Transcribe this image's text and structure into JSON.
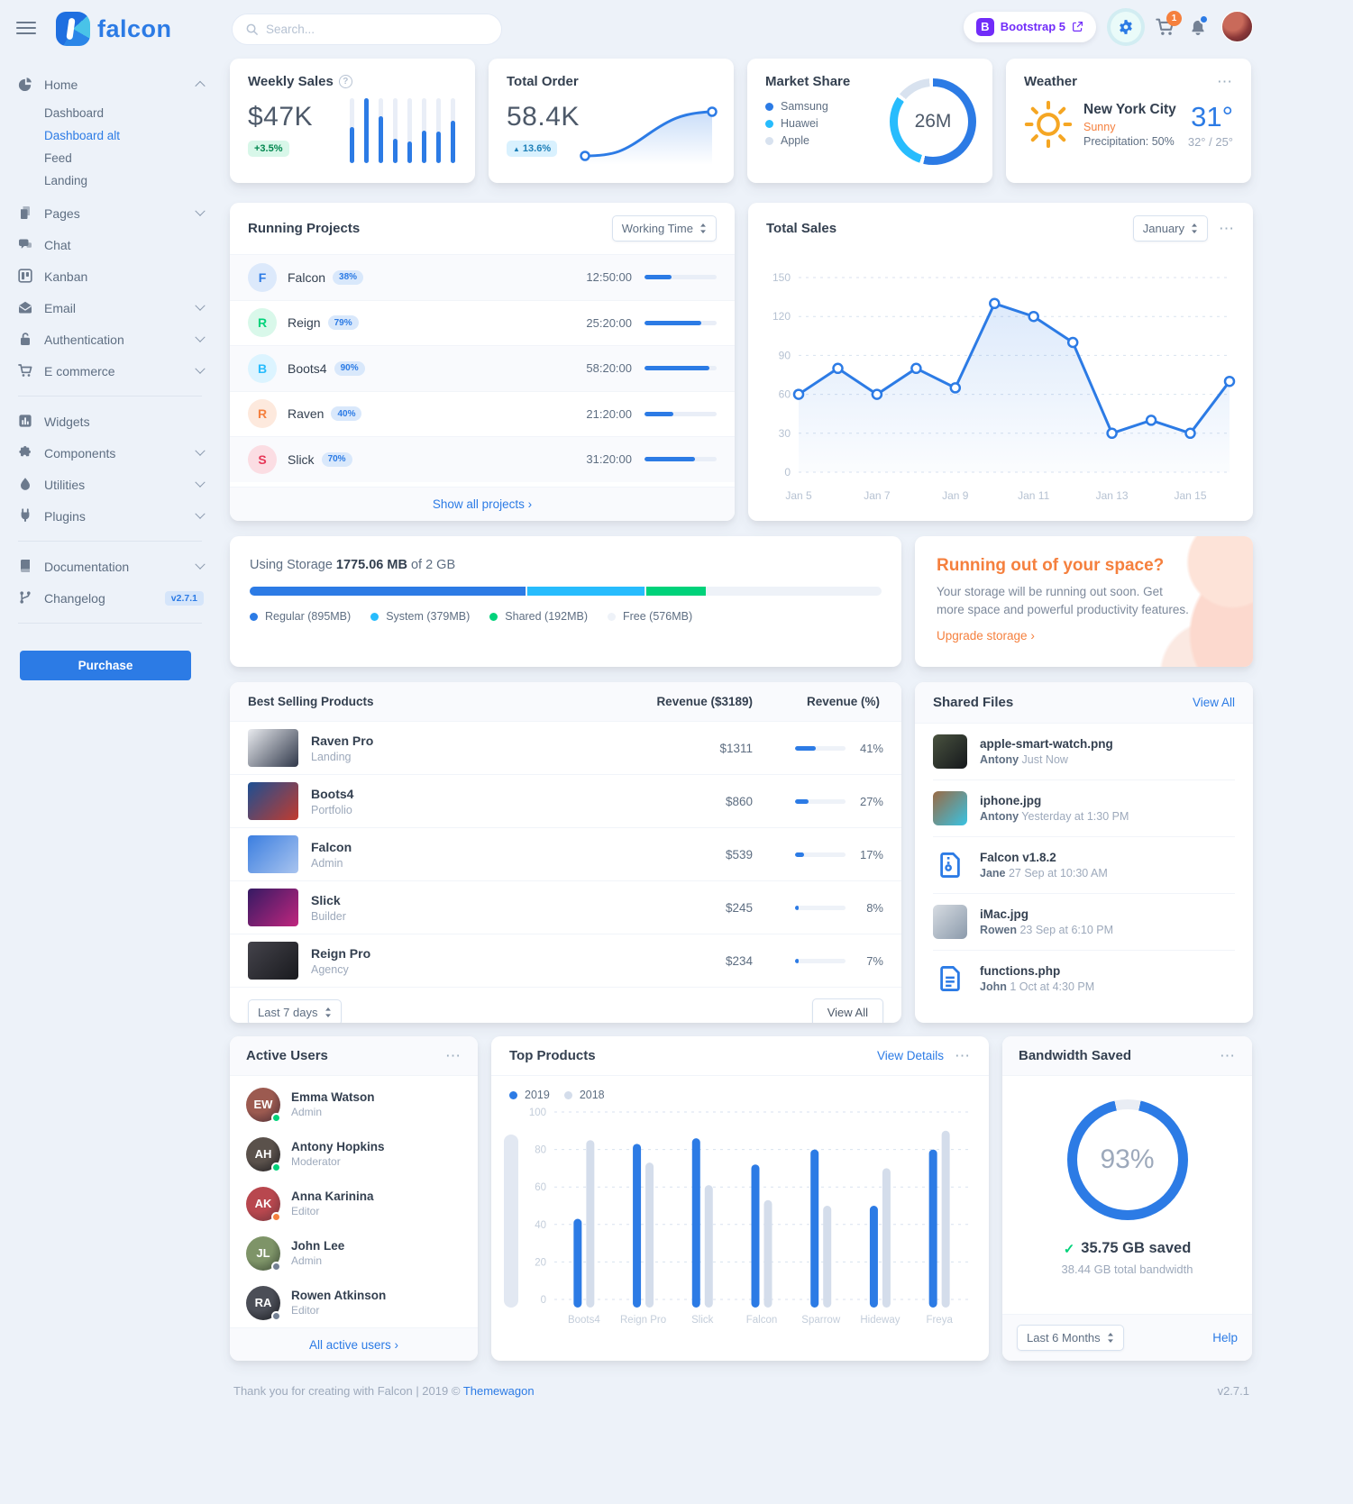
{
  "glyphs": {
    "menu": "⋯",
    "help": "?",
    "chevron_right": "›",
    "check": "✓",
    "caret_up": "▲",
    "bootstrap_letter": "B"
  },
  "colors": {
    "primary": "#2c7be5",
    "info": "#27bcfd",
    "success": "#00d27a",
    "warning": "#f5803e",
    "danger": "#e63757",
    "gray300": "#d8e2ef"
  },
  "navbar": {
    "logo": "falcon",
    "search_placeholder": "Search...",
    "bootstrap_badge": "Bootstrap 5",
    "cart_count": "1"
  },
  "sidebar": {
    "sections": [
      {
        "items": [
          {
            "label": "Home",
            "icon": "chart-pie",
            "chevron": "up",
            "children": [
              {
                "label": "Dashboard",
                "active": false
              },
              {
                "label": "Dashboard alt",
                "active": true
              },
              {
                "label": "Feed",
                "active": false
              },
              {
                "label": "Landing",
                "active": false
              }
            ]
          },
          {
            "label": "Pages",
            "icon": "pages",
            "chevron": "down"
          },
          {
            "label": "Chat",
            "icon": "chat"
          },
          {
            "label": "Kanban",
            "icon": "kanban"
          },
          {
            "label": "Email",
            "icon": "email",
            "chevron": "down"
          },
          {
            "label": "Authentication",
            "icon": "lock",
            "chevron": "down"
          },
          {
            "label": "E commerce",
            "icon": "cart",
            "chevron": "down"
          }
        ]
      },
      {
        "items": [
          {
            "label": "Widgets",
            "icon": "widgets"
          },
          {
            "label": "Components",
            "icon": "puzzle",
            "chevron": "down"
          },
          {
            "label": "Utilities",
            "icon": "drop",
            "chevron": "down"
          },
          {
            "label": "Plugins",
            "icon": "plug",
            "chevron": "down"
          }
        ]
      },
      {
        "items": [
          {
            "label": "Documentation",
            "icon": "book",
            "chevron": "down"
          },
          {
            "label": "Changelog",
            "icon": "branch",
            "badge": "v2.7.1"
          }
        ]
      }
    ],
    "purchase_label": "Purchase"
  },
  "weekly_sales": {
    "title": "Weekly Sales",
    "value": "$47K",
    "badge": "+3.5%",
    "bars": [
      55,
      100,
      72,
      38,
      33,
      50,
      48,
      65
    ]
  },
  "total_order": {
    "title": "Total Order",
    "value": "58.4K",
    "badge": "13.6%"
  },
  "market_share": {
    "title": "Market Share",
    "center": "26M",
    "legend": [
      {
        "label": "Samsung",
        "color": "#2c7be5",
        "pct": 55
      },
      {
        "label": "Huawei",
        "color": "#27bcfd",
        "pct": 31
      },
      {
        "label": "Apple",
        "color": "#d8e2ef",
        "pct": 14
      }
    ]
  },
  "weather": {
    "title": "Weather",
    "city": "New York City",
    "condition": "Sunny",
    "precipitation": "Precipitation: 50%",
    "temp": "31°",
    "range": "32° / 25°"
  },
  "running_projects": {
    "title": "Running Projects",
    "select_value": "Working Time",
    "footer_link": "Show all projects",
    "rows": [
      {
        "initial": "F",
        "name": "Falcon",
        "percent": "38%",
        "progress": 38,
        "time": "12:50:00",
        "color": "#2c7be5",
        "bg": "#dcE9fb"
      },
      {
        "initial": "R",
        "name": "Reign",
        "percent": "79%",
        "progress": 79,
        "time": "25:20:00",
        "color": "#00d27a",
        "bg": "#d9f8ea"
      },
      {
        "initial": "B",
        "name": "Boots4",
        "percent": "90%",
        "progress": 90,
        "time": "58:20:00",
        "color": "#27bcfd",
        "bg": "#dcf4ff"
      },
      {
        "initial": "R",
        "name": "Raven",
        "percent": "40%",
        "progress": 40,
        "time": "21:20:00",
        "color": "#f5803e",
        "bg": "#fde9dd"
      },
      {
        "initial": "S",
        "name": "Slick",
        "percent": "70%",
        "progress": 70,
        "time": "31:20:00",
        "color": "#e63757",
        "bg": "#fbdde3"
      }
    ]
  },
  "total_sales": {
    "title": "Total Sales",
    "select_value": "January",
    "y_ticks": [
      0,
      30,
      60,
      90,
      120,
      150
    ],
    "x_labels": [
      "Jan 5",
      "Jan 7",
      "Jan 9",
      "Jan 11",
      "Jan 13",
      "Jan 15"
    ],
    "values": [
      60,
      80,
      60,
      80,
      65,
      130,
      120,
      100,
      30,
      40,
      30,
      70
    ]
  },
  "storage": {
    "prefix": "Using Storage",
    "used": "1775.06 MB",
    "suffix": "of 2 GB",
    "total_mb": 2048,
    "segments": [
      {
        "label": "Regular (895MB)",
        "mb": 895,
        "color": "#2c7be5"
      },
      {
        "label": "System (379MB)",
        "mb": 379,
        "color": "#27bcfd"
      },
      {
        "label": "Shared (192MB)",
        "mb": 192,
        "color": "#00d27a"
      },
      {
        "label": "Free (576MB)",
        "mb": 576,
        "color": "#eef2f8"
      }
    ]
  },
  "space_warning": {
    "title": "Running out of your space?",
    "body": "Your storage will be running out soon. Get more space and powerful productivity features.",
    "link": "Upgrade storage"
  },
  "best_selling": {
    "title": "Best Selling Products",
    "col_revenue": "Revenue ($3189)",
    "col_percent": "Revenue (%)",
    "select_value": "Last 7 days",
    "view_all": "View All",
    "rows": [
      {
        "name": "Raven Pro",
        "category": "Landing",
        "revenue": "$1311",
        "pct": 41,
        "thumb": [
          "#e9ebef",
          "#30384a"
        ]
      },
      {
        "name": "Boots4",
        "category": "Portfolio",
        "revenue": "$860",
        "pct": 27,
        "thumb": [
          "#1c4f93",
          "#c23b2e"
        ]
      },
      {
        "name": "Falcon",
        "category": "Admin",
        "revenue": "$539",
        "pct": 17,
        "thumb": [
          "#3b7ee0",
          "#a9c4ef"
        ]
      },
      {
        "name": "Slick",
        "category": "Builder",
        "revenue": "$245",
        "pct": 8,
        "thumb": [
          "#351a63",
          "#c0267e"
        ]
      },
      {
        "name": "Reign Pro",
        "category": "Agency",
        "revenue": "$234",
        "pct": 7,
        "thumb": [
          "#44434b",
          "#191a1e"
        ]
      }
    ]
  },
  "shared_files": {
    "title": "Shared Files",
    "view_all": "View All",
    "rows": [
      {
        "name": "apple-smart-watch.png",
        "by": "Antony",
        "time": "Just Now",
        "kind": "image",
        "thumb": [
          "#49523f",
          "#15181c"
        ]
      },
      {
        "name": "iphone.jpg",
        "by": "Antony",
        "time": "Yesterday at 1:30 PM",
        "kind": "image",
        "thumb": [
          "#9a6a44",
          "#38c3e3"
        ]
      },
      {
        "name": "Falcon v1.8.2",
        "by": "Jane",
        "time": "27 Sep at 10:30 AM",
        "kind": "file-zip"
      },
      {
        "name": "iMac.jpg",
        "by": "Rowen",
        "time": "23 Sep at 6:10 PM",
        "kind": "image",
        "thumb": [
          "#d7dce2",
          "#8b9aab"
        ]
      },
      {
        "name": "functions.php",
        "by": "John",
        "time": "1 Oct at 4:30 PM",
        "kind": "file-code"
      }
    ]
  },
  "active_users": {
    "title": "Active Users",
    "footer_link": "All active users",
    "rows": [
      {
        "name": "Emma Watson",
        "role": "Admin",
        "status": "#00d27a",
        "initials": "EW",
        "av": [
          "#9c5a50",
          "#472a33"
        ]
      },
      {
        "name": "Antony Hopkins",
        "role": "Moderator",
        "status": "#00d27a",
        "initials": "AH",
        "av": [
          "#5a514b",
          "#1d1b1e"
        ]
      },
      {
        "name": "Anna Karinina",
        "role": "Editor",
        "status": "#f5803e",
        "initials": "AK",
        "av": [
          "#b8474e",
          "#70343c"
        ]
      },
      {
        "name": "John Lee",
        "role": "Admin",
        "status": "#748194",
        "initials": "JL",
        "av": [
          "#7e9468",
          "#3c4a35"
        ]
      },
      {
        "name": "Rowen Atkinson",
        "role": "Editor",
        "status": "#748194",
        "initials": "RA",
        "av": [
          "#4b4e57",
          "#191b20"
        ]
      }
    ]
  },
  "top_products": {
    "title": "Top Products",
    "link": "View Details",
    "legend": [
      {
        "label": "2019",
        "color": "#2c7be5"
      },
      {
        "label": "2018",
        "color": "#d4ddeb"
      }
    ],
    "categories": [
      "Boots4",
      "Reign Pro",
      "Slick",
      "Falcon",
      "Sparrow",
      "Hideway",
      "Freya"
    ],
    "series": [
      {
        "name": "2019",
        "values": [
          43,
          83,
          86,
          72,
          80,
          50,
          80
        ]
      },
      {
        "name": "2018",
        "values": [
          85,
          73,
          61,
          53,
          50,
          70,
          90
        ]
      }
    ],
    "y_ticks": [
      0,
      20,
      40,
      60,
      80,
      100
    ]
  },
  "bandwidth": {
    "title": "Bandwidth Saved",
    "percent": 93,
    "percent_label": "93%",
    "saved": "35.75 GB saved",
    "total": "38.44 GB total bandwidth",
    "select_value": "Last 6 Months",
    "help_link": "Help"
  },
  "footer": {
    "text": "Thank you for creating with Falcon | 2019 ©",
    "brand": "Themewagon",
    "version": "v2.7.1"
  },
  "chart_data": [
    {
      "type": "bar",
      "title": "Weekly Sales",
      "categories": [
        "1",
        "2",
        "3",
        "4",
        "5",
        "6",
        "7",
        "8"
      ],
      "values": [
        55,
        100,
        72,
        38,
        33,
        50,
        48,
        65
      ],
      "ylim": [
        0,
        100
      ]
    },
    {
      "type": "line",
      "title": "Total Order",
      "values": [
        30,
        70
      ],
      "note": "sparkline rising S-curve"
    },
    {
      "type": "pie",
      "title": "Market Share",
      "categories": [
        "Samsung",
        "Huawei",
        "Apple"
      ],
      "values": [
        55,
        31,
        14
      ],
      "center_label": "26M"
    },
    {
      "type": "line",
      "title": "Total Sales",
      "x": [
        "Jan 5",
        "Jan 6",
        "Jan 7",
        "Jan 8",
        "Jan 9",
        "Jan 10",
        "Jan 11",
        "Jan 12",
        "Jan 13",
        "Jan 14",
        "Jan 15",
        "Jan 16"
      ],
      "values": [
        60,
        80,
        60,
        80,
        65,
        130,
        120,
        100,
        30,
        40,
        30,
        70
      ],
      "ylim": [
        0,
        150
      ],
      "grid": true,
      "xlabel": "",
      "ylabel": ""
    },
    {
      "type": "bar",
      "title": "Top Products",
      "categories": [
        "Boots4",
        "Reign Pro",
        "Slick",
        "Falcon",
        "Sparrow",
        "Hideway",
        "Freya"
      ],
      "series": [
        {
          "name": "2019",
          "values": [
            43,
            83,
            86,
            72,
            80,
            50,
            80
          ]
        },
        {
          "name": "2018",
          "values": [
            85,
            73,
            61,
            53,
            50,
            70,
            90
          ]
        }
      ],
      "ylim": [
        0,
        100
      ],
      "legend_position": "top-left",
      "grid": true
    },
    {
      "type": "pie",
      "title": "Bandwidth Saved",
      "categories": [
        "saved",
        "remaining"
      ],
      "values": [
        93,
        7
      ],
      "center_label": "93%"
    }
  ]
}
